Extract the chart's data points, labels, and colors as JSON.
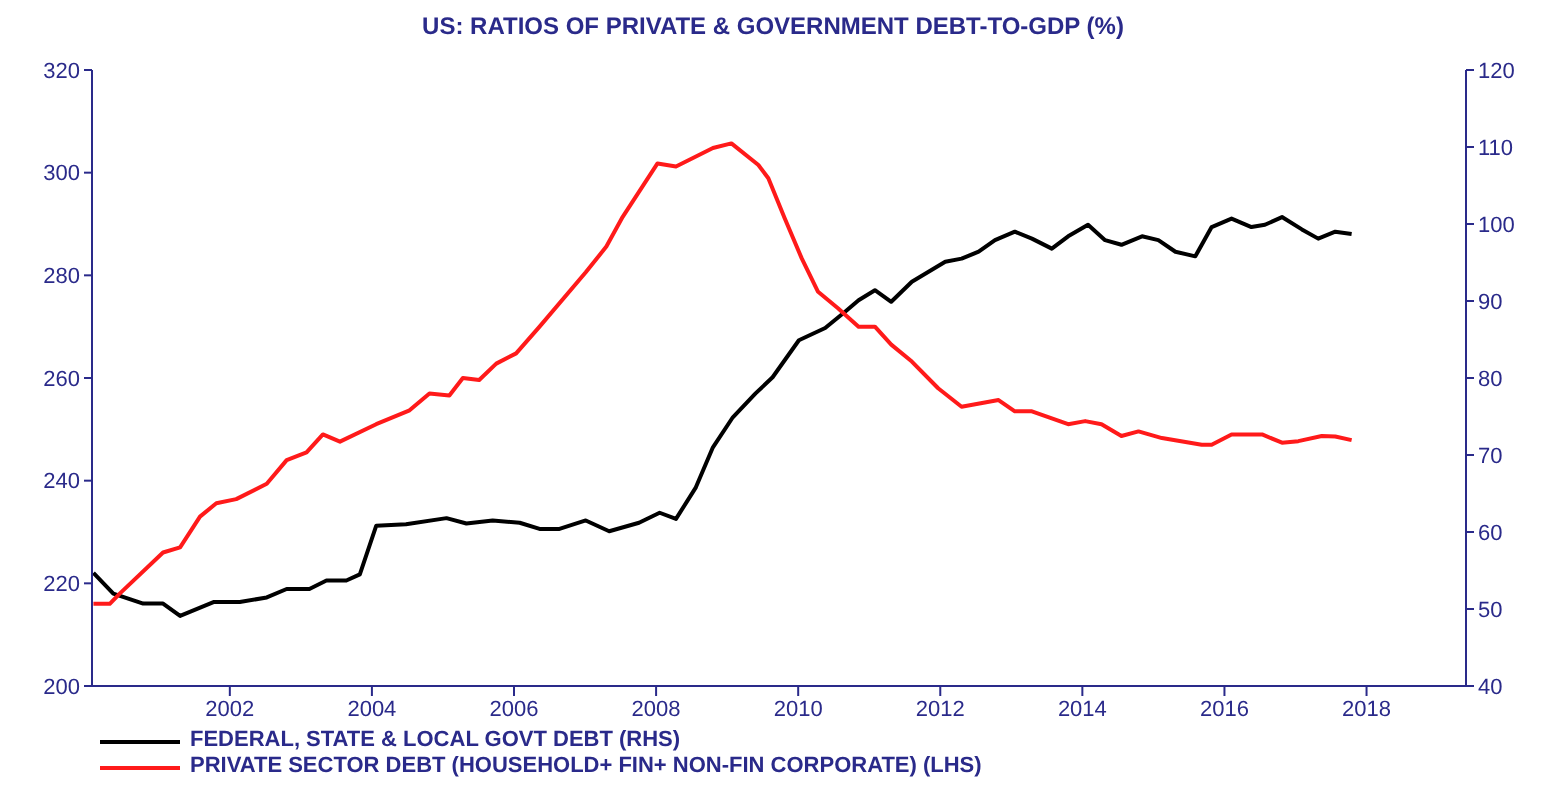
{
  "chart_data": {
    "type": "line",
    "title": "US: RATIOS OF PRIVATE & GOVERNMENT DEBT-TO-GDP (%)",
    "xlim": [
      2000.06,
      2019.4
    ],
    "xticks": [
      2002,
      2004,
      2006,
      2008,
      2010,
      2012,
      2014,
      2016,
      2018
    ],
    "ylim": [
      200,
      320
    ],
    "yticks": [
      200,
      220,
      240,
      260,
      280,
      300,
      320
    ],
    "y2lim": [
      40,
      120
    ],
    "y2ticks": [
      40,
      50,
      60,
      70,
      80,
      90,
      100,
      110,
      120
    ],
    "legend": "bottom",
    "grid": false,
    "marker": "none",
    "line_style": "solid",
    "series": [
      {
        "name": "FEDERAL, STATE & LOCAL GOVT DEBT (RHS)",
        "color": "#000000",
        "axis": "y2",
        "x": [
          2000.08,
          2000.36,
          2000.78,
          2001.06,
          2001.3,
          2001.77,
          2002.14,
          2002.52,
          2002.8,
          2003.12,
          2003.36,
          2003.64,
          2003.83,
          2004.06,
          2004.48,
          2005.05,
          2005.33,
          2005.7,
          2006.08,
          2006.36,
          2006.64,
          2007.01,
          2007.34,
          2007.76,
          2008.05,
          2008.28,
          2008.56,
          2008.8,
          2009.08,
          2009.4,
          2009.64,
          2010.01,
          2010.38,
          2010.66,
          2010.85,
          2011.08,
          2011.31,
          2011.6,
          2012.07,
          2012.3,
          2012.54,
          2012.77,
          2013.05,
          2013.29,
          2013.57,
          2013.8,
          2014.08,
          2014.32,
          2014.55,
          2014.84,
          2015.07,
          2015.31,
          2015.59,
          2015.82,
          2016.1,
          2016.38,
          2016.57,
          2016.81,
          2017.09,
          2017.32,
          2017.56,
          2017.79
        ],
        "values": [
          54.7,
          52.0,
          50.7,
          50.7,
          49.1,
          50.9,
          50.9,
          51.5,
          52.6,
          52.6,
          53.7,
          53.7,
          54.5,
          60.8,
          61.0,
          61.8,
          61.1,
          61.5,
          61.2,
          60.4,
          60.4,
          61.5,
          60.1,
          61.2,
          62.5,
          61.7,
          65.8,
          71.0,
          74.9,
          78.0,
          80.1,
          84.9,
          86.5,
          88.6,
          90.1,
          91.4,
          89.9,
          92.5,
          95.1,
          95.5,
          96.4,
          97.9,
          99.0,
          98.1,
          96.8,
          98.4,
          99.9,
          97.9,
          97.3,
          98.4,
          97.9,
          96.4,
          95.8,
          99.6,
          100.7,
          99.6,
          99.9,
          100.9,
          99.3,
          98.1,
          99.0,
          98.7
        ]
      },
      {
        "name": "PRIVATE SECTOR DEBT (HOUSEHOLD+ FIN+ NON-FIN CORPORATE) (LHS)",
        "color": "#ff1a1a",
        "axis": "y",
        "x": [
          2000.08,
          2000.31,
          2000.45,
          2001.06,
          2001.3,
          2001.58,
          2001.81,
          2002.09,
          2002.52,
          2002.8,
          2003.08,
          2003.31,
          2003.55,
          2004.06,
          2004.53,
          2004.81,
          2005.09,
          2005.28,
          2005.51,
          2005.75,
          2006.03,
          2006.36,
          2007.01,
          2007.3,
          2007.53,
          2008.02,
          2008.28,
          2008.8,
          2009.06,
          2009.44,
          2009.58,
          2009.81,
          2010.05,
          2010.28,
          2010.56,
          2010.85,
          2011.08,
          2011.31,
          2011.6,
          2011.97,
          2012.3,
          2012.82,
          2013.05,
          2013.29,
          2013.8,
          2014.04,
          2014.27,
          2014.55,
          2014.79,
          2015.12,
          2015.68,
          2015.82,
          2016.1,
          2016.53,
          2016.81,
          2017.04,
          2017.37,
          2017.56,
          2017.79
        ],
        "values": [
          216,
          216,
          218,
          226,
          227,
          233,
          235.6,
          236.4,
          239.4,
          244,
          245.5,
          249,
          247.6,
          251,
          253.7,
          257,
          256.6,
          260,
          259.6,
          262.8,
          264.8,
          270,
          280.6,
          285.6,
          291.4,
          301.8,
          301.2,
          304.8,
          305.7,
          301.5,
          298.9,
          291.1,
          283.3,
          276.8,
          273.6,
          270,
          270,
          266.5,
          263.2,
          258,
          254.4,
          255.7,
          253.5,
          253.5,
          251,
          251.6,
          251,
          248.7,
          249.6,
          248.3,
          247,
          247,
          249,
          249,
          247.4,
          247.7,
          248.7,
          248.6,
          247.9
        ]
      }
    ]
  }
}
